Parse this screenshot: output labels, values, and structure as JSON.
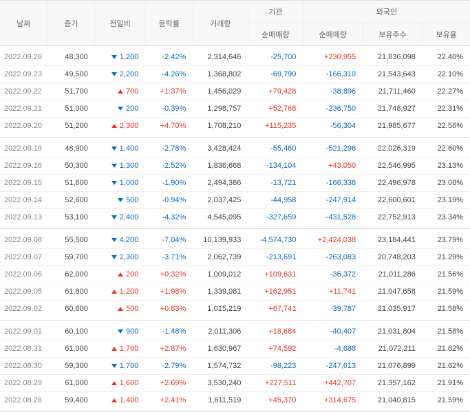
{
  "headers": {
    "date": "날짜",
    "close": "종가",
    "change": "전일비",
    "pct": "등락률",
    "volume": "거래량",
    "institution": "기관",
    "inst_net": "순매매량",
    "foreign": "외국인",
    "for_net": "순매매량",
    "for_hold": "보유주수",
    "for_pct": "보유율"
  },
  "colors": {
    "up": "#ee3124",
    "down": "#1068bf"
  },
  "rows": [
    {
      "date": "2022.09.26",
      "close": "48,300",
      "dir": "down",
      "change": "1,200",
      "pct": "-2.42%",
      "vol": "2,314,646",
      "inst": "-25,700",
      "for_net": "+230,955",
      "for_hold": "21,836,098",
      "for_pct": "22.40%",
      "group": "start"
    },
    {
      "date": "2022.09.23",
      "close": "49,500",
      "dir": "down",
      "change": "2,200",
      "pct": "-4.26%",
      "vol": "1,368,802",
      "inst": "-69,790",
      "for_net": "-166,310",
      "for_hold": "21,543,643",
      "for_pct": "22.10%"
    },
    {
      "date": "2022.09.22",
      "close": "51,700",
      "dir": "up",
      "change": "700",
      "pct": "+1.37%",
      "vol": "1,456,029",
      "inst": "+79,428",
      "for_net": "-38,896",
      "for_hold": "21,711,460",
      "for_pct": "22.27%"
    },
    {
      "date": "2022.09.21",
      "close": "51,000",
      "dir": "down",
      "change": "200",
      "pct": "-0.39%",
      "vol": "1,298,757",
      "inst": "+52,768",
      "for_net": "-236,750",
      "for_hold": "21,748,927",
      "for_pct": "22.31%"
    },
    {
      "date": "2022.09.20",
      "close": "51,200",
      "dir": "up",
      "change": "2,300",
      "pct": "+4.70%",
      "vol": "1,708,210",
      "inst": "+115,235",
      "for_net": "-56,304",
      "for_hold": "21,985,677",
      "for_pct": "22.56%",
      "group": "end"
    },
    {
      "date": "2022.09.19",
      "close": "48,900",
      "dir": "down",
      "change": "1,400",
      "pct": "-2.78%",
      "vol": "3,428,424",
      "inst": "-55,460",
      "for_net": "-521,296",
      "for_hold": "22,026,319",
      "for_pct": "22.60%",
      "group": "start"
    },
    {
      "date": "2022.09.16",
      "close": "50,300",
      "dir": "down",
      "change": "1,300",
      "pct": "-2.52%",
      "vol": "1,836,668",
      "inst": "-134,104",
      "for_net": "+43,050",
      "for_hold": "22,546,995",
      "for_pct": "23.13%"
    },
    {
      "date": "2022.09.15",
      "close": "51,600",
      "dir": "down",
      "change": "1,000",
      "pct": "-1.90%",
      "vol": "2,494,386",
      "inst": "-13,721",
      "for_net": "-166,338",
      "for_hold": "22,496,978",
      "for_pct": "23.08%"
    },
    {
      "date": "2022.09.14",
      "close": "52,600",
      "dir": "down",
      "change": "500",
      "pct": "-0.94%",
      "vol": "2,037,425",
      "inst": "-44,958",
      "for_net": "-247,914",
      "for_hold": "22,600,601",
      "for_pct": "23.19%"
    },
    {
      "date": "2022.09.13",
      "close": "53,100",
      "dir": "down",
      "change": "2,400",
      "pct": "-4.32%",
      "vol": "4,545,095",
      "inst": "-327,659",
      "for_net": "-431,528",
      "for_hold": "22,752,913",
      "for_pct": "23.34%",
      "group": "end"
    },
    {
      "date": "2022.09.08",
      "close": "55,500",
      "dir": "down",
      "change": "4,200",
      "pct": "-7.04%",
      "vol": "10,139,933",
      "inst": "-4,574,730",
      "for_net": "+2,424,038",
      "for_hold": "23,184,441",
      "for_pct": "23.79%",
      "group": "start"
    },
    {
      "date": "2022.09.07",
      "close": "59,700",
      "dir": "down",
      "change": "2,300",
      "pct": "-3.71%",
      "vol": "2,062,739",
      "inst": "-213,691",
      "for_net": "-263,083",
      "for_hold": "20,748,203",
      "for_pct": "21.29%"
    },
    {
      "date": "2022.09.06",
      "close": "62,000",
      "dir": "up",
      "change": "200",
      "pct": "+0.32%",
      "vol": "1,009,012",
      "inst": "+109,631",
      "for_net": "-36,372",
      "for_hold": "21,011,286",
      "for_pct": "21.56%"
    },
    {
      "date": "2022.09.05",
      "close": "61,800",
      "dir": "up",
      "change": "1,200",
      "pct": "+1.98%",
      "vol": "1,339,081",
      "inst": "+162,951",
      "for_net": "+11,741",
      "for_hold": "21,047,658",
      "for_pct": "21.59%"
    },
    {
      "date": "2022.09.02",
      "close": "60,600",
      "dir": "up",
      "change": "500",
      "pct": "+0.83%",
      "vol": "1,015,219",
      "inst": "+67,741",
      "for_net": "-39,787",
      "for_hold": "21,035,917",
      "for_pct": "21.58%",
      "group": "end"
    },
    {
      "date": "2022.09.01",
      "close": "60,100",
      "dir": "down",
      "change": "900",
      "pct": "-1.48%",
      "vol": "2,011,306",
      "inst": "+18,684",
      "for_net": "-40,407",
      "for_hold": "21,031,804",
      "for_pct": "21.58%",
      "group": "start"
    },
    {
      "date": "2022.08.31",
      "close": "61,000",
      "dir": "up",
      "change": "1,700",
      "pct": "+2.87%",
      "vol": "1,630,967",
      "inst": "+74,592",
      "for_net": "-4,688",
      "for_hold": "21,072,211",
      "for_pct": "21.62%"
    },
    {
      "date": "2022.08.30",
      "close": "59,300",
      "dir": "down",
      "change": "1,700",
      "pct": "-2.79%",
      "vol": "1,574,732",
      "inst": "-98,223",
      "for_net": "-247,613",
      "for_hold": "21,076,899",
      "for_pct": "21.62%"
    },
    {
      "date": "2022.08.29",
      "close": "61,000",
      "dir": "up",
      "change": "1,600",
      "pct": "+2.69%",
      "vol": "3,530,240",
      "inst": "+227,511",
      "for_net": "+442,707",
      "for_hold": "21,357,162",
      "for_pct": "21.91%"
    },
    {
      "date": "2022.08.26",
      "close": "59,400",
      "dir": "up",
      "change": "1,400",
      "pct": "+2.41%",
      "vol": "1,611,519",
      "inst": "+45,370",
      "for_net": "+314,675",
      "for_hold": "21,040,815",
      "for_pct": "21.59%",
      "group": "end"
    }
  ]
}
